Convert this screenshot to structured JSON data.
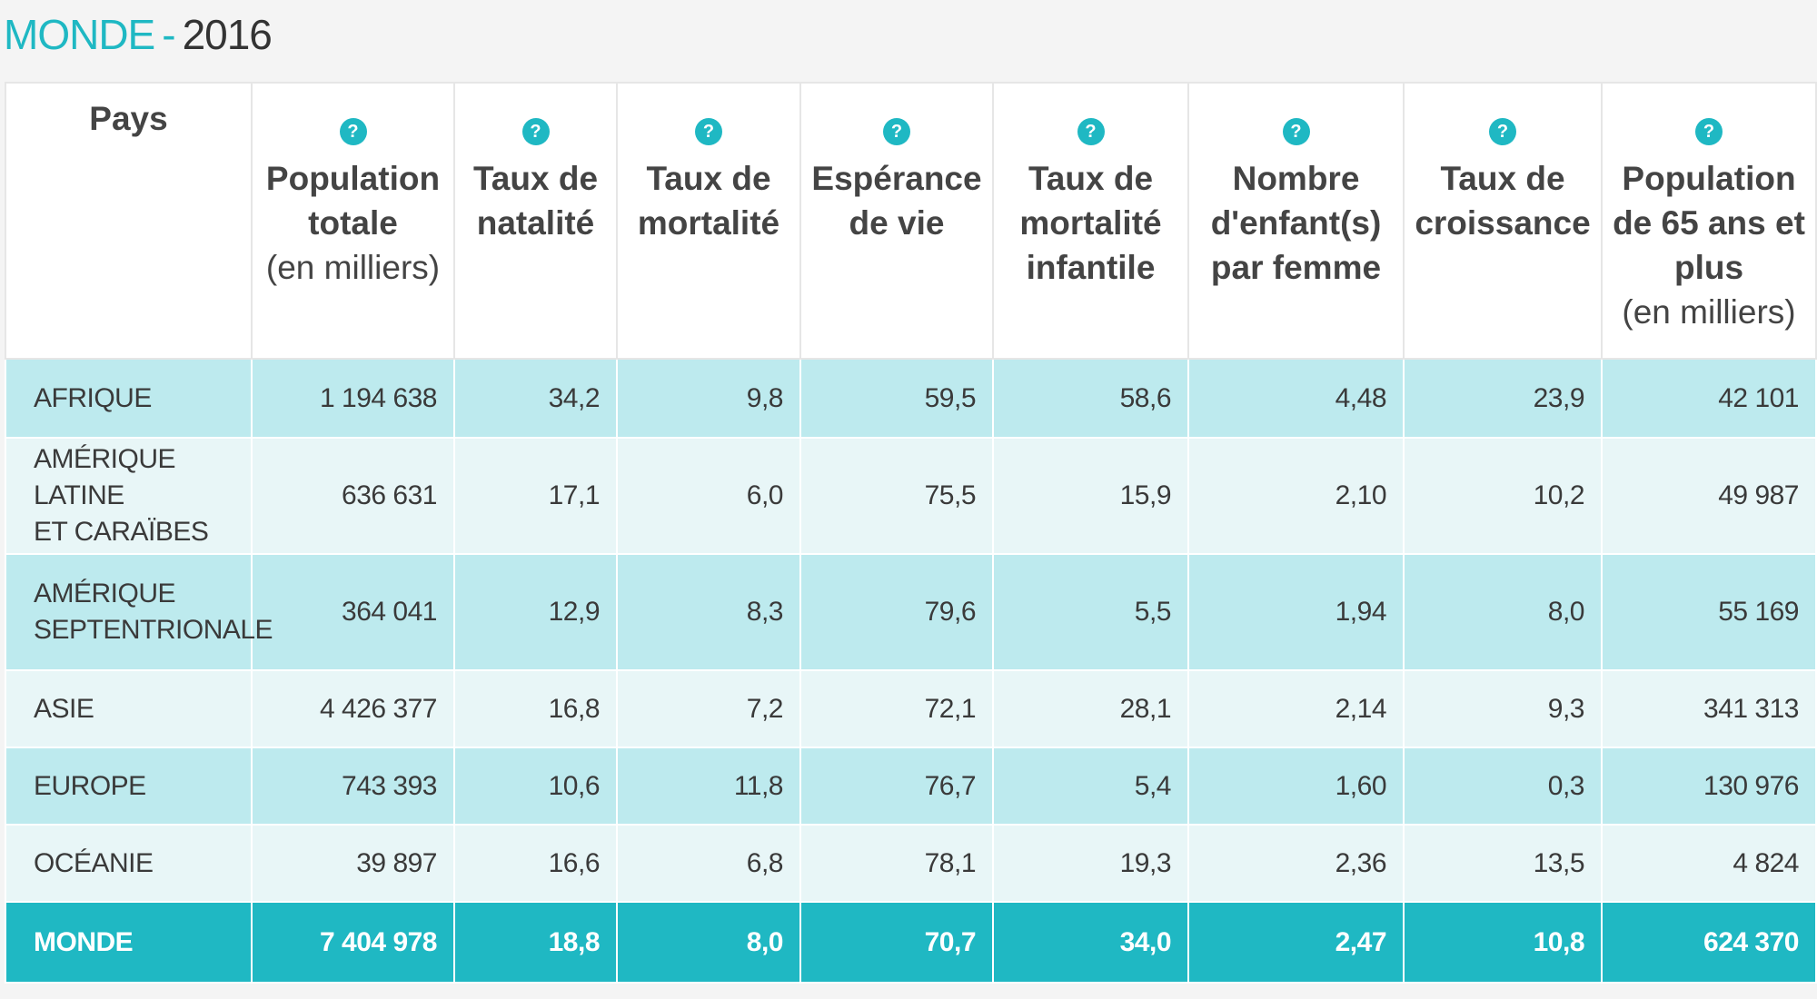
{
  "header": {
    "title": "MONDE",
    "separator": "-",
    "year": "2016"
  },
  "help_icon": "?",
  "table": {
    "columns": [
      {
        "lines": [
          "Pays"
        ],
        "help": false
      },
      {
        "lines": [
          "Population",
          "totale"
        ],
        "sub": "(en milliers)",
        "help": true
      },
      {
        "lines": [
          "Taux de",
          "natalité"
        ],
        "help": true
      },
      {
        "lines": [
          "Taux de",
          "mortalité"
        ],
        "help": true
      },
      {
        "lines": [
          "Espérance",
          "de vie"
        ],
        "help": true
      },
      {
        "lines": [
          "Taux de",
          "mortalité",
          "infantile"
        ],
        "help": true
      },
      {
        "lines": [
          "Nombre",
          "d'enfant(s)",
          "par femme"
        ],
        "help": true
      },
      {
        "lines": [
          "Taux de",
          "croissance"
        ],
        "help": true
      },
      {
        "lines": [
          "Population",
          "de 65 ans et",
          "plus"
        ],
        "sub": "(en milliers)",
        "help": true
      }
    ],
    "rows": [
      {
        "name": [
          "AFRIQUE"
        ],
        "cells": [
          "1 194 638",
          "34,2",
          "9,8",
          "59,5",
          "58,6",
          "4,48",
          "23,9",
          "42 101"
        ]
      },
      {
        "name": [
          "AMÉRIQUE LATINE",
          "ET CARAÏBES"
        ],
        "cells": [
          "636 631",
          "17,1",
          "6,0",
          "75,5",
          "15,9",
          "2,10",
          "10,2",
          "49 987"
        ]
      },
      {
        "name": [
          "AMÉRIQUE",
          "SEPTENTRIONALE"
        ],
        "cells": [
          "364 041",
          "12,9",
          "8,3",
          "79,6",
          "5,5",
          "1,94",
          "8,0",
          "55 169"
        ]
      },
      {
        "name": [
          "ASIE"
        ],
        "cells": [
          "4 426 377",
          "16,8",
          "7,2",
          "72,1",
          "28,1",
          "2,14",
          "9,3",
          "341 313"
        ]
      },
      {
        "name": [
          "EUROPE"
        ],
        "cells": [
          "743 393",
          "10,6",
          "11,8",
          "76,7",
          "5,4",
          "1,60",
          "0,3",
          "130 976"
        ]
      },
      {
        "name": [
          "OCÉANIE"
        ],
        "cells": [
          "39 897",
          "16,6",
          "6,8",
          "78,1",
          "19,3",
          "2,36",
          "13,5",
          "4 824"
        ]
      }
    ],
    "total": {
      "name": [
        "MONDE"
      ],
      "cells": [
        "7 404 978",
        "18,8",
        "8,0",
        "70,7",
        "34,0",
        "2,47",
        "10,8",
        "624 370"
      ]
    }
  }
}
